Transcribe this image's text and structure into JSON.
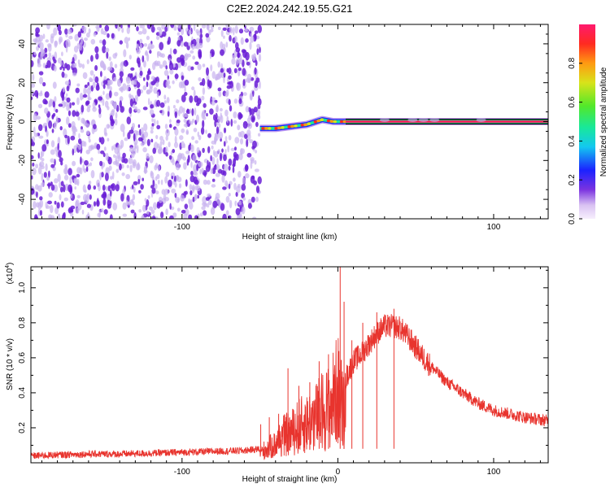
{
  "figure_title": "C2E2.2024.242.19.55.G21",
  "colors": {
    "snr_line": "#e8342e",
    "hot": "#ff1a5a",
    "band": "#000000",
    "scatter_dark": "#6a1fd6",
    "scatter_light": "#c9b3ef"
  },
  "chart_data": [
    {
      "type": "heatmap",
      "xlabel": "Height of straight line (km)",
      "ylabel": "Frequency (Hz)",
      "xlim": [
        -197,
        135
      ],
      "ylim": [
        -50,
        50
      ],
      "xticks": [
        -100,
        0,
        100
      ],
      "xtick_labels": [
        "-100",
        "",
        "100"
      ],
      "yticks": [
        -40,
        -20,
        0,
        20,
        40
      ],
      "ytick_labels": [
        "-40",
        "-20",
        "0",
        "20",
        "40"
      ],
      "noise_region_x": [
        -197,
        -50
      ],
      "frequency_track": [
        {
          "x": -50,
          "y": -3.5
        },
        {
          "x": -40,
          "y": -3.5
        },
        {
          "x": -30,
          "y": -2.5
        },
        {
          "x": -20,
          "y": -1.5
        },
        {
          "x": -10,
          "y": 1
        },
        {
          "x": -3,
          "y": 0
        },
        {
          "x": 5,
          "y": 0
        },
        {
          "x": 135,
          "y": 0
        }
      ],
      "colorbar": {
        "label": "Normalized spectral amplitude",
        "range": [
          0,
          1
        ],
        "ticks": [
          0.0,
          0.2,
          0.4,
          0.6,
          0.8
        ],
        "tick_labels": [
          "0.0",
          "0.2",
          "0.4",
          "0.6",
          "0.8"
        ]
      }
    },
    {
      "type": "line",
      "xlabel": "Height of straight line (km)",
      "ylabel": "SNR (10 * v/v)",
      "multiplier": "(x10",
      "multiplier_exp": "4",
      "multiplier_close": ")",
      "xlim": [
        -197,
        135
      ],
      "ylim": [
        0.0,
        1.12
      ],
      "xticks": [
        -100,
        0,
        100
      ],
      "xtick_labels": [
        "-100",
        "0",
        "100"
      ],
      "yticks": [
        0.2,
        0.4,
        0.6,
        0.8,
        1.0
      ],
      "ytick_labels": [
        "0.2",
        "0.4",
        "0.6",
        "0.8",
        "1.0"
      ],
      "series": [
        {
          "x": [
            -197,
            -180,
            -160,
            -140,
            -120,
            -100,
            -80,
            -60,
            -50,
            -45,
            -40,
            -35,
            -30,
            -25,
            -20,
            -15,
            -10,
            -5,
            -2,
            0,
            2,
            5,
            10,
            15,
            20,
            25,
            30,
            35,
            40,
            45,
            50,
            55,
            60,
            70,
            80,
            90,
            100,
            110,
            120,
            135
          ],
          "values": [
            0.04,
            0.045,
            0.05,
            0.05,
            0.055,
            0.06,
            0.065,
            0.07,
            0.08,
            0.12,
            0.15,
            0.22,
            0.24,
            0.3,
            0.32,
            0.36,
            0.42,
            0.46,
            0.55,
            0.6,
            0.5,
            0.48,
            0.58,
            0.62,
            0.68,
            0.74,
            0.78,
            0.78,
            0.77,
            0.72,
            0.66,
            0.6,
            0.55,
            0.46,
            0.4,
            0.34,
            0.3,
            0.28,
            0.26,
            0.24
          ]
        }
      ],
      "spikes": [
        {
          "x": -49.5,
          "y": 0.22
        },
        {
          "x": -44,
          "y": 0.26
        },
        {
          "x": -38,
          "y": 0.28
        },
        {
          "x": -32,
          "y": 0.54
        },
        {
          "x": -25,
          "y": 0.44
        },
        {
          "x": -18,
          "y": 0.46
        },
        {
          "x": -12,
          "y": 0.58
        },
        {
          "x": -6,
          "y": 0.62
        },
        {
          "x": 1.5,
          "y": 1.12
        },
        {
          "x": 4,
          "y": 0.92
        },
        {
          "x": 9,
          "y": 0.7
        },
        {
          "x": 16,
          "y": 0.8
        },
        {
          "x": 25,
          "y": 0.86
        },
        {
          "x": 36,
          "y": 0.88
        }
      ]
    }
  ]
}
